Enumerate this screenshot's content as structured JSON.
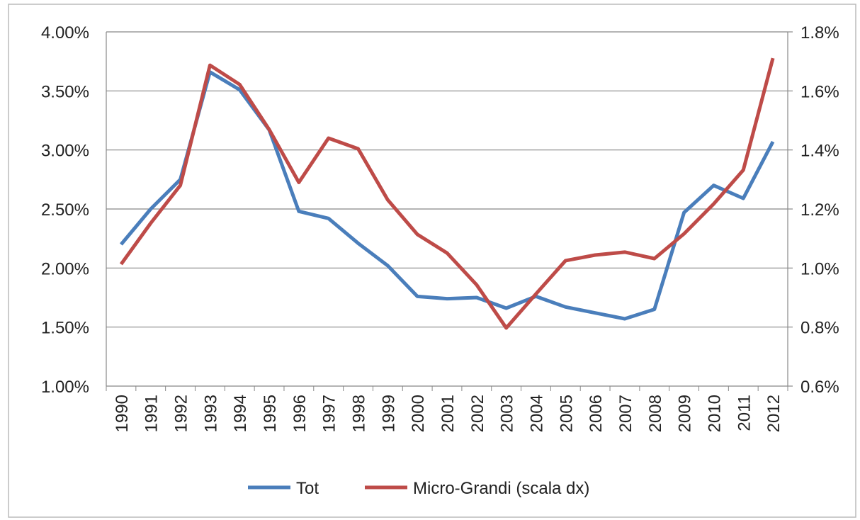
{
  "chart_data": {
    "type": "line",
    "categories": [
      "1990",
      "1991",
      "1992",
      "1993",
      "1994",
      "1995",
      "1996",
      "1997",
      "1998",
      "1999",
      "2000",
      "2001",
      "2002",
      "2003",
      "2004",
      "2005",
      "2006",
      "2007",
      "2008",
      "2009",
      "2010",
      "2011",
      "2012"
    ],
    "series": [
      {
        "name": "Tot",
        "color": "#4a7ebb",
        "values": [
          2.2,
          2.5,
          2.75,
          3.66,
          3.51,
          3.17,
          2.48,
          2.42,
          2.21,
          2.02,
          1.76,
          1.74,
          1.75,
          1.66,
          1.76,
          1.67,
          1.62,
          1.57,
          1.65,
          2.47,
          2.7,
          2.59,
          3.07
        ]
      },
      {
        "name": "Micro-Grandi (scala dx)",
        "color": "#be4b48",
        "axis": "y2",
        "values": [
          1.013,
          1.152,
          1.28,
          1.687,
          1.622,
          1.469,
          1.29,
          1.44,
          1.404,
          1.231,
          1.114,
          1.051,
          0.943,
          0.797,
          0.912,
          1.025,
          1.044,
          1.054,
          1.032,
          1.116,
          1.217,
          1.332,
          1.711
        ]
      }
    ],
    "ylim": [
      1,
      4
    ],
    "yticks": [
      {
        "value": 1,
        "label": "1.00%"
      },
      {
        "value": 1.5,
        "label": "1.50%"
      },
      {
        "value": 2,
        "label": "2.00%"
      },
      {
        "value": 2.5,
        "label": "2.50%"
      },
      {
        "value": 3,
        "label": "3.00%"
      },
      {
        "value": 3.5,
        "label": "3.50%"
      },
      {
        "value": 4,
        "label": "4.00%"
      }
    ],
    "y2lim": [
      0.6,
      1.8
    ],
    "y2ticks": [
      {
        "value": 0.6,
        "label": "0.6%"
      },
      {
        "value": 0.8,
        "label": "0.8%"
      },
      {
        "value": 1,
        "label": "1.0%"
      },
      {
        "value": 1.2,
        "label": "1.2%"
      },
      {
        "value": 1.4,
        "label": "1.4%"
      },
      {
        "value": 1.6,
        "label": "1.6%"
      },
      {
        "value": 1.8,
        "label": "1.8%"
      }
    ],
    "grid": true,
    "legend": "bottom"
  }
}
